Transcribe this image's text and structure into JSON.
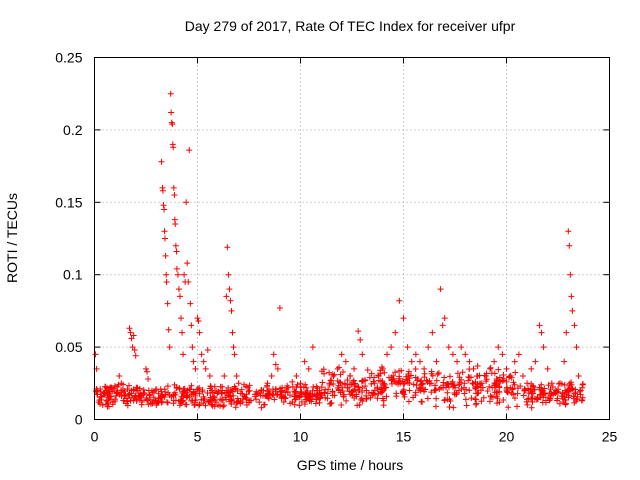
{
  "chart_data": {
    "type": "scatter",
    "title": "Day 279 of 2017, Rate Of TEC Index for receiver ufpr",
    "xlabel": "GPS time / hours",
    "ylabel": "ROTI / TECUs",
    "xlim": [
      0,
      25
    ],
    "ylim": [
      0,
      0.25
    ],
    "xticks": [
      0,
      5,
      10,
      15,
      20,
      25
    ],
    "xtick_labels": [
      "0",
      "5",
      "10",
      "15",
      "20",
      "25"
    ],
    "yticks": [
      0,
      0.05,
      0.1,
      0.15,
      0.2,
      0.25
    ],
    "ytick_labels": [
      "0",
      "0.05",
      "0.1",
      "0.15",
      "0.2",
      "0.25"
    ],
    "grid": true,
    "marker": "+",
    "color": "#ff0000",
    "series": [
      {
        "name": "ROTI",
        "points": [
          [
            0.05,
            0.045
          ],
          [
            0.1,
            0.035
          ],
          [
            0.15,
            0.02
          ],
          [
            0.2,
            0.012
          ],
          [
            0.3,
            0.015
          ],
          [
            0.4,
            0.01
          ],
          [
            0.5,
            0.018
          ],
          [
            0.6,
            0.013
          ],
          [
            0.7,
            0.009
          ],
          [
            0.8,
            0.016
          ],
          [
            0.9,
            0.012
          ],
          [
            1.0,
            0.014
          ],
          [
            1.1,
            0.019
          ],
          [
            1.2,
            0.03
          ],
          [
            1.3,
            0.025
          ],
          [
            1.4,
            0.013
          ],
          [
            1.5,
            0.017
          ],
          [
            1.6,
            0.021
          ],
          [
            1.7,
            0.063
          ],
          [
            1.75,
            0.06
          ],
          [
            1.8,
            0.056
          ],
          [
            1.85,
            0.05
          ],
          [
            1.9,
            0.058
          ],
          [
            1.95,
            0.048
          ],
          [
            2.0,
            0.044
          ],
          [
            2.1,
            0.02
          ],
          [
            2.2,
            0.016
          ],
          [
            2.3,
            0.012
          ],
          [
            2.4,
            0.018
          ],
          [
            2.5,
            0.035
          ],
          [
            2.55,
            0.033
          ],
          [
            2.6,
            0.028
          ],
          [
            2.7,
            0.014
          ],
          [
            2.8,
            0.011
          ],
          [
            2.9,
            0.013
          ],
          [
            3.0,
            0.01
          ],
          [
            3.1,
            0.012
          ],
          [
            3.2,
            0.015
          ],
          [
            3.25,
            0.178
          ],
          [
            3.3,
            0.16
          ],
          [
            3.32,
            0.158
          ],
          [
            3.35,
            0.148
          ],
          [
            3.38,
            0.145
          ],
          [
            3.4,
            0.13
          ],
          [
            3.42,
            0.125
          ],
          [
            3.45,
            0.113
          ],
          [
            3.48,
            0.1
          ],
          [
            3.5,
            0.095
          ],
          [
            3.55,
            0.08
          ],
          [
            3.6,
            0.062
          ],
          [
            3.65,
            0.05
          ],
          [
            3.7,
            0.225
          ],
          [
            3.72,
            0.212
          ],
          [
            3.75,
            0.205
          ],
          [
            3.78,
            0.204
          ],
          [
            3.8,
            0.19
          ],
          [
            3.82,
            0.188
          ],
          [
            3.85,
            0.16
          ],
          [
            3.88,
            0.155
          ],
          [
            3.9,
            0.138
          ],
          [
            3.92,
            0.135
          ],
          [
            3.95,
            0.12
          ],
          [
            3.98,
            0.116
          ],
          [
            4.0,
            0.104
          ],
          [
            4.05,
            0.1
          ],
          [
            4.1,
            0.09
          ],
          [
            4.15,
            0.085
          ],
          [
            4.2,
            0.07
          ],
          [
            4.25,
            0.06
          ],
          [
            4.3,
            0.045
          ],
          [
            4.35,
            0.1
          ],
          [
            4.4,
            0.095
          ],
          [
            4.45,
            0.15
          ],
          [
            4.5,
            0.108
          ],
          [
            4.55,
            0.095
          ],
          [
            4.6,
            0.186
          ],
          [
            4.65,
            0.08
          ],
          [
            4.7,
            0.065
          ],
          [
            4.75,
            0.05
          ],
          [
            4.8,
            0.04
          ],
          [
            4.9,
            0.035
          ],
          [
            5.0,
            0.07
          ],
          [
            5.05,
            0.068
          ],
          [
            5.1,
            0.06
          ],
          [
            5.2,
            0.045
          ],
          [
            5.3,
            0.04
          ],
          [
            5.4,
            0.035
          ],
          [
            5.5,
            0.048
          ],
          [
            5.6,
            0.03
          ],
          [
            5.7,
            0.02
          ],
          [
            5.8,
            0.015
          ],
          [
            5.9,
            0.012
          ],
          [
            6.0,
            0.01
          ],
          [
            6.1,
            0.014
          ],
          [
            6.2,
            0.02
          ],
          [
            6.3,
            0.03
          ],
          [
            6.4,
            0.085
          ],
          [
            6.45,
            0.119
          ],
          [
            6.5,
            0.1
          ],
          [
            6.55,
            0.09
          ],
          [
            6.6,
            0.082
          ],
          [
            6.65,
            0.075
          ],
          [
            6.7,
            0.06
          ],
          [
            6.75,
            0.05
          ],
          [
            6.8,
            0.045
          ],
          [
            6.9,
            0.03
          ],
          [
            7.0,
            0.025
          ],
          [
            7.1,
            0.018
          ],
          [
            7.2,
            0.012
          ],
          [
            7.4,
            0.01
          ],
          [
            7.6,
            0.013
          ],
          [
            7.8,
            0.016
          ],
          [
            8.0,
            0.012
          ],
          [
            8.2,
            0.02
          ],
          [
            8.4,
            0.025
          ],
          [
            8.6,
            0.03
          ],
          [
            8.7,
            0.045
          ],
          [
            8.8,
            0.038
          ],
          [
            8.9,
            0.035
          ],
          [
            9.0,
            0.077
          ],
          [
            9.1,
            0.02
          ],
          [
            9.2,
            0.015
          ],
          [
            9.4,
            0.022
          ],
          [
            9.6,
            0.026
          ],
          [
            9.8,
            0.03
          ],
          [
            10.0,
            0.025
          ],
          [
            10.2,
            0.04
          ],
          [
            10.4,
            0.035
          ],
          [
            10.6,
            0.05
          ],
          [
            10.8,
            0.02
          ],
          [
            11.0,
            0.018
          ],
          [
            11.2,
            0.015
          ],
          [
            11.4,
            0.025
          ],
          [
            11.6,
            0.03
          ],
          [
            11.8,
            0.035
          ],
          [
            12.0,
            0.045
          ],
          [
            12.2,
            0.04
          ],
          [
            12.4,
            0.03
          ],
          [
            12.6,
            0.035
          ],
          [
            12.8,
            0.061
          ],
          [
            12.9,
            0.055
          ],
          [
            13.0,
            0.045
          ],
          [
            13.2,
            0.02
          ],
          [
            13.4,
            0.015
          ],
          [
            13.6,
            0.025
          ],
          [
            13.8,
            0.03
          ],
          [
            14.0,
            0.035
          ],
          [
            14.2,
            0.045
          ],
          [
            14.4,
            0.05
          ],
          [
            14.6,
            0.06
          ],
          [
            14.8,
            0.082
          ],
          [
            15.0,
            0.07
          ],
          [
            15.2,
            0.05
          ],
          [
            15.4,
            0.04
          ],
          [
            15.6,
            0.045
          ],
          [
            15.8,
            0.04
          ],
          [
            16.0,
            0.035
          ],
          [
            16.2,
            0.05
          ],
          [
            16.4,
            0.06
          ],
          [
            16.6,
            0.04
          ],
          [
            16.8,
            0.09
          ],
          [
            16.9,
            0.065
          ],
          [
            17.0,
            0.07
          ],
          [
            17.2,
            0.05
          ],
          [
            17.4,
            0.045
          ],
          [
            17.6,
            0.04
          ],
          [
            17.8,
            0.05
          ],
          [
            18.0,
            0.045
          ],
          [
            18.2,
            0.04
          ],
          [
            18.4,
            0.035
          ],
          [
            18.6,
            0.03
          ],
          [
            18.8,
            0.025
          ],
          [
            19.0,
            0.03
          ],
          [
            19.2,
            0.035
          ],
          [
            19.4,
            0.04
          ],
          [
            19.6,
            0.05
          ],
          [
            19.8,
            0.045
          ],
          [
            20.0,
            0.035
          ],
          [
            20.2,
            0.03
          ],
          [
            20.4,
            0.04
          ],
          [
            20.6,
            0.045
          ],
          [
            20.8,
            0.03
          ],
          [
            21.0,
            0.025
          ],
          [
            21.2,
            0.035
          ],
          [
            21.4,
            0.04
          ],
          [
            21.6,
            0.065
          ],
          [
            21.7,
            0.06
          ],
          [
            21.8,
            0.05
          ],
          [
            22.0,
            0.035
          ],
          [
            22.2,
            0.025
          ],
          [
            22.4,
            0.02
          ],
          [
            22.6,
            0.025
          ],
          [
            22.8,
            0.04
          ],
          [
            22.9,
            0.06
          ],
          [
            23.0,
            0.13
          ],
          [
            23.05,
            0.12
          ],
          [
            23.1,
            0.1
          ],
          [
            23.15,
            0.085
          ],
          [
            23.2,
            0.075
          ],
          [
            23.3,
            0.065
          ],
          [
            23.4,
            0.05
          ],
          [
            23.5,
            0.03
          ],
          [
            23.6,
            0.02
          ],
          [
            23.7,
            0.015
          ]
        ]
      }
    ]
  }
}
